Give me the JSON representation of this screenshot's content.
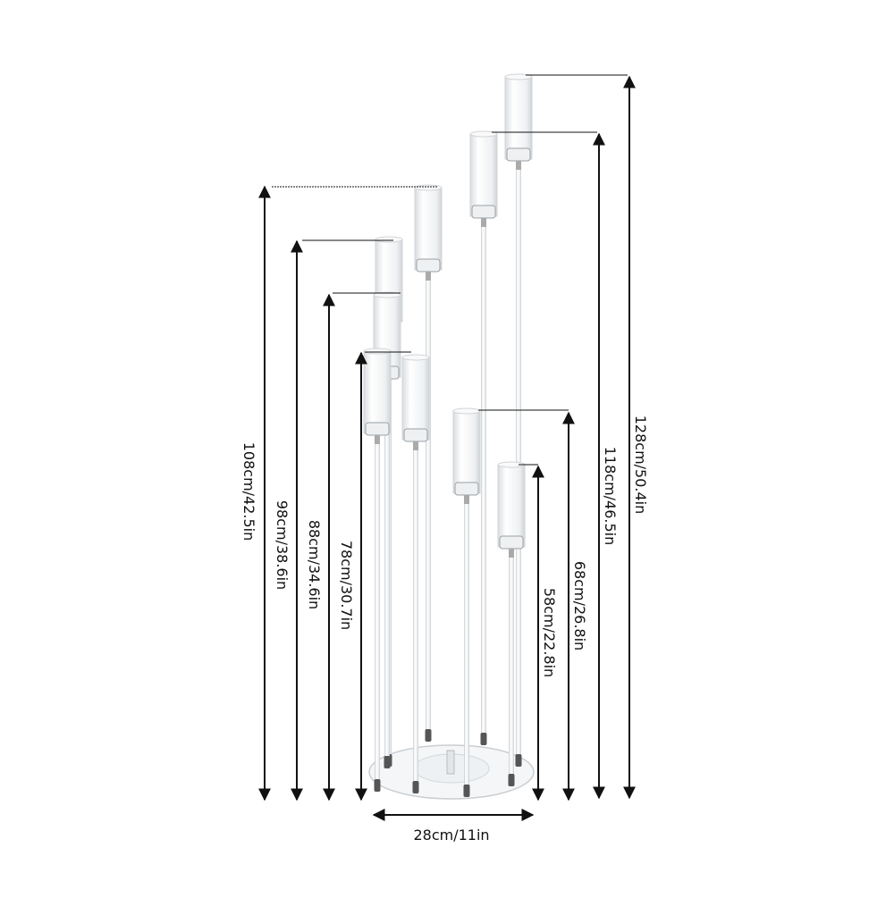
{
  "dimensions": {
    "heights": [
      {
        "label": "108cm/42.5in"
      },
      {
        "label": "98cm/38.6in"
      },
      {
        "label": "88cm/34.6in"
      },
      {
        "label": "78cm/30.7in"
      },
      {
        "label": "68cm/26.8in"
      },
      {
        "label": "58cm/22.8in"
      },
      {
        "label": "118cm/46.5in"
      },
      {
        "label": "128cm/50.4in"
      }
    ],
    "base_width": {
      "label": "28cm/11in"
    }
  },
  "colors": {
    "line": "#111111",
    "acrylic": "#dfe3e6"
  }
}
